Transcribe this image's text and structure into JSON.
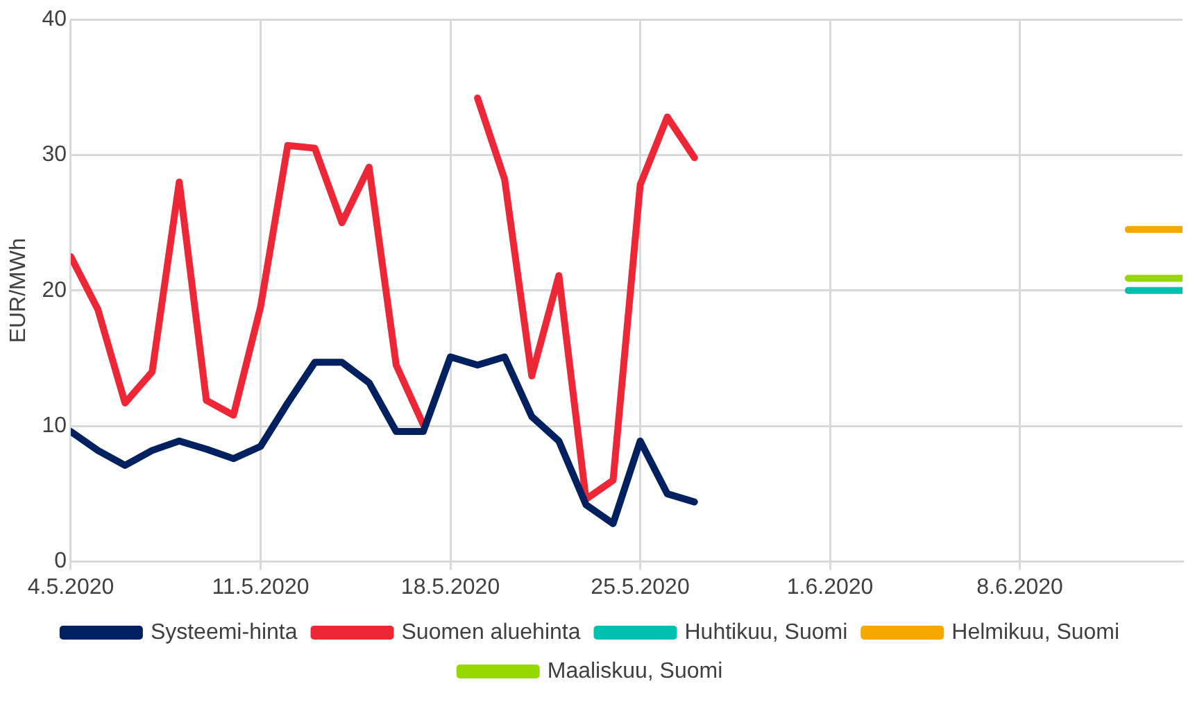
{
  "chart_data": {
    "type": "line",
    "ylabel": "EUR/MWh",
    "x": [
      "2020-05-04",
      "2020-05-05",
      "2020-05-06",
      "2020-05-07",
      "2020-05-08",
      "2020-05-09",
      "2020-05-10",
      "2020-05-11",
      "2020-05-12",
      "2020-05-13",
      "2020-05-14",
      "2020-05-15",
      "2020-05-16",
      "2020-05-17",
      "2020-05-18",
      "2020-05-19",
      "2020-05-20",
      "2020-05-21",
      "2020-05-22",
      "2020-05-23",
      "2020-05-24",
      "2020-05-25",
      "2020-05-26",
      "2020-05-27"
    ],
    "series": [
      {
        "name": "Systeemi-hinta",
        "color": "#002060",
        "values": [
          9.6,
          8.2,
          7.1,
          8.2,
          8.9,
          8.3,
          7.6,
          8.5,
          11.7,
          14.7,
          14.7,
          13.2,
          9.6,
          9.6,
          15.1,
          14.5,
          15.1,
          10.7,
          8.9,
          4.2,
          2.8,
          8.9,
          5.0,
          4.4
        ]
      },
      {
        "name": "Suomen aluehinta",
        "color": "#ee2737",
        "values": [
          22.5,
          18.6,
          11.7,
          14.0,
          28.0,
          11.9,
          10.8,
          18.8,
          30.7,
          30.5,
          25.0,
          29.1,
          14.5,
          10.1,
          null,
          34.2,
          28.2,
          13.7,
          21.1,
          4.6,
          6.0,
          27.8,
          32.8,
          29.8
        ]
      },
      {
        "name": "Huhtikuu, Suomi",
        "color": "#00c0b0",
        "x": [
          "2020-06-12",
          "2020-06-14"
        ],
        "values": [
          20.0,
          20.0
        ]
      },
      {
        "name": "Helmikuu, Suomi",
        "color": "#f5a800",
        "x": [
          "2020-06-12",
          "2020-06-14"
        ],
        "values": [
          24.5,
          24.5
        ]
      },
      {
        "name": "Maaliskuu, Suomi",
        "color": "#96d700",
        "x": [
          "2020-06-12",
          "2020-06-14"
        ],
        "values": [
          20.9,
          20.9
        ]
      }
    ],
    "xlim": [
      "2020-05-04",
      "2020-06-14"
    ],
    "xticks": [
      {
        "value": "2020-05-04",
        "label": "4.5.2020"
      },
      {
        "value": "2020-05-11",
        "label": "11.5.2020"
      },
      {
        "value": "2020-05-18",
        "label": "18.5.2020"
      },
      {
        "value": "2020-05-25",
        "label": "25.5.2020"
      },
      {
        "value": "2020-06-01",
        "label": "1.6.2020"
      },
      {
        "value": "2020-06-08",
        "label": "8.6.2020"
      }
    ],
    "ylim": [
      0,
      40
    ],
    "yticks": [
      0,
      10,
      20,
      30,
      40
    ],
    "grid": true,
    "legend": "bottom",
    "marker": "none",
    "line_style": "solid"
  }
}
